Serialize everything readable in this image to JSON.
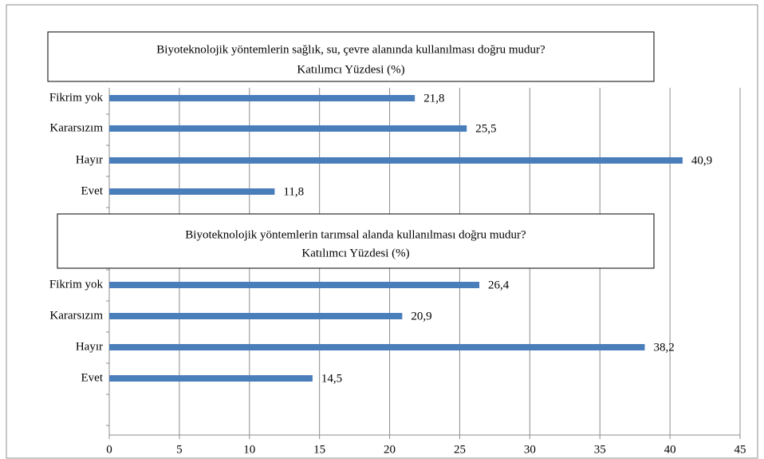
{
  "chart_data": [
    {
      "type": "bar",
      "title": "Biyoteknolojik yöntemlerin sağlık, su, çevre alanında kullanılması doğru mudur?",
      "subtitle": "Katılımcı Yüzdesi (%)",
      "categories": [
        "Fikrim yok",
        "Kararsızım",
        "Hayır",
        "Evet"
      ],
      "values": [
        21.8,
        25.5,
        40.9,
        11.8
      ],
      "value_labels": [
        "21,8",
        "25,5",
        "40,9",
        "11,8"
      ],
      "color": "#4a7ebb"
    },
    {
      "type": "bar",
      "title": "Biyoteknolojik yöntemlerin tarımsal alanda kullanılması doğru mudur?",
      "subtitle": "Katılımcı Yüzdesi (%)",
      "categories": [
        "Fikrim yok",
        "Kararsızım",
        "Hayır",
        "Evet"
      ],
      "values": [
        26.4,
        20.9,
        38.2,
        14.5
      ],
      "value_labels": [
        "26,4",
        "20,9",
        "38,2",
        "14,5"
      ],
      "color": "#4a7ebb",
      "xlim": [
        0,
        45
      ],
      "xticks": [
        0,
        5,
        10,
        15,
        20,
        25,
        30,
        35,
        40,
        45
      ],
      "grid": true
    }
  ]
}
